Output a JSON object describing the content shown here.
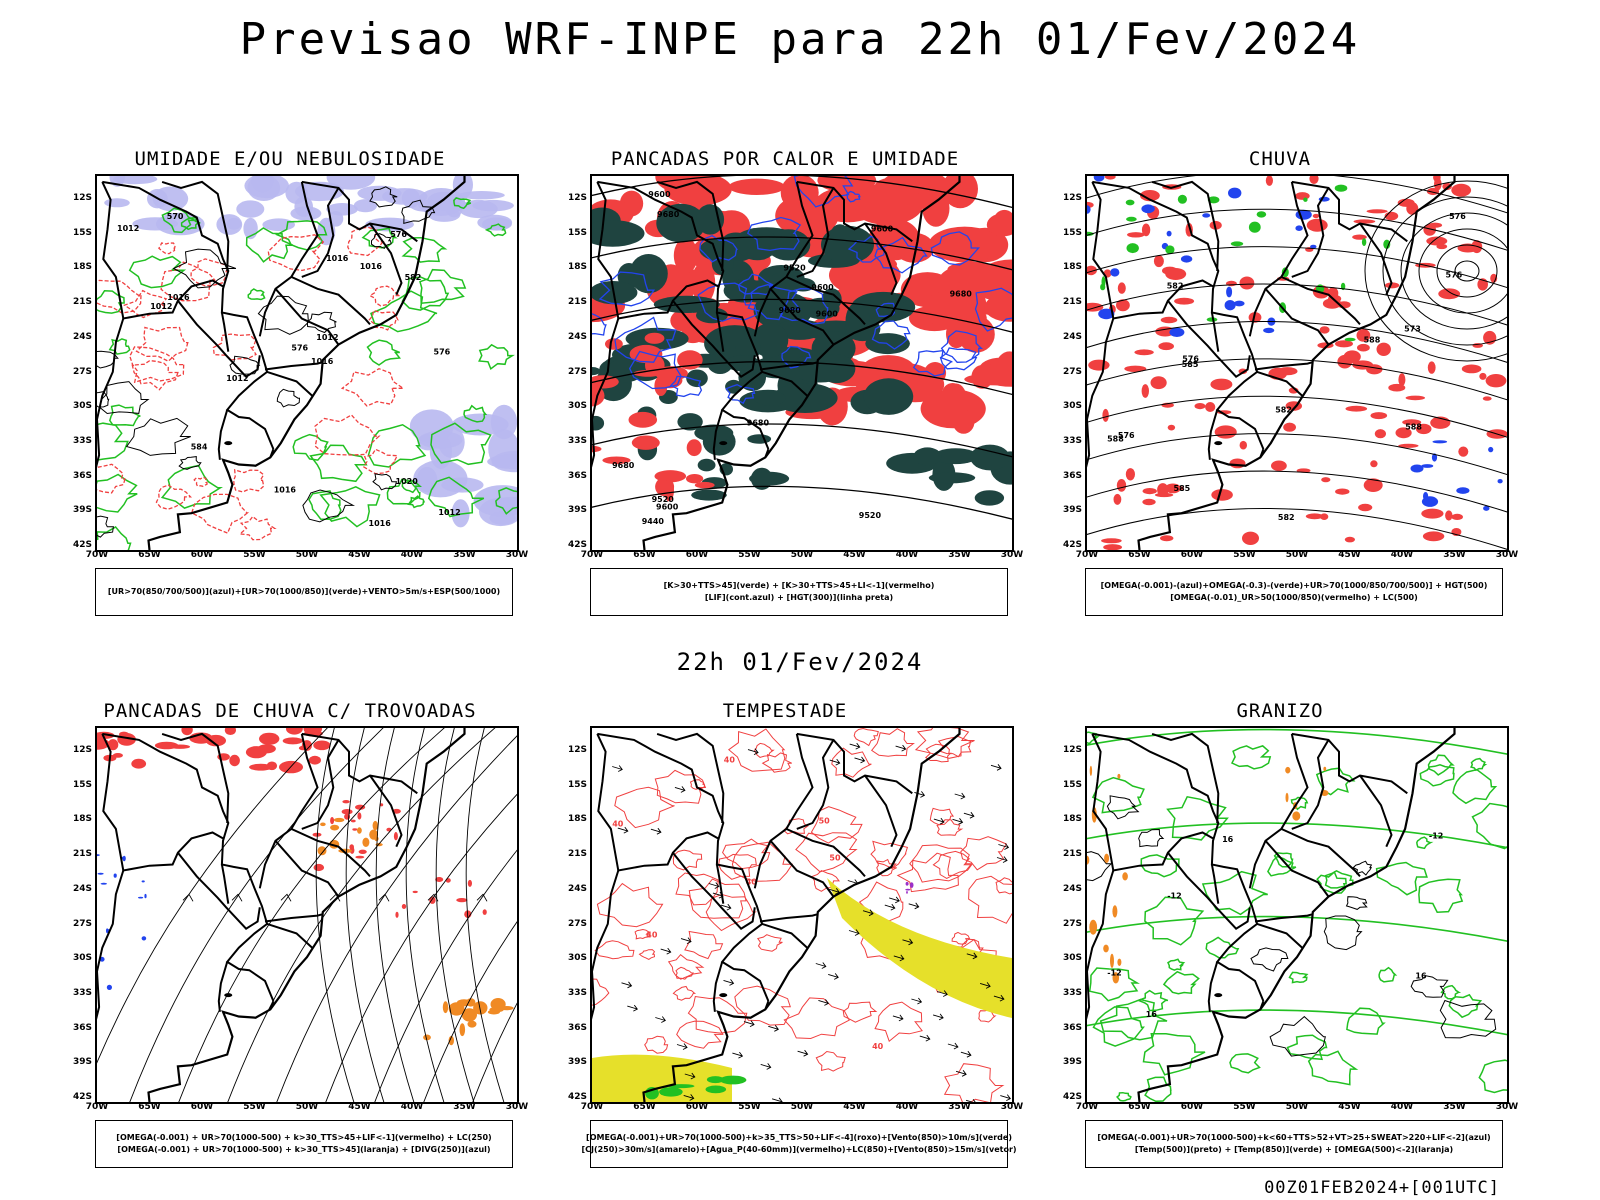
{
  "header": {
    "title": "Previsao WRF-INPE  para 22h 01/Fev/2024",
    "subtitle": "22h 01/Fev/2024",
    "footer": "00Z01FEB2024+[001UTC]"
  },
  "map": {
    "lat_ticks": [
      "12S",
      "15S",
      "18S",
      "21S",
      "24S",
      "27S",
      "30S",
      "33S",
      "36S",
      "39S",
      "42S"
    ],
    "lon_ticks": [
      "70W",
      "65W",
      "60W",
      "55W",
      "50W",
      "45W",
      "40W",
      "35W",
      "30W"
    ],
    "colors": {
      "coast": "#000000",
      "red": "#f04040",
      "green": "#22c022",
      "blue": "#2244ee",
      "lavender": "#b8b8f0",
      "darkteal": "#1f4440",
      "yellow": "#e6e02a",
      "orange": "#f08a24",
      "purple": "#9b30c8"
    }
  },
  "panels": [
    {
      "title": "UMIDADE E/OU NEBULOSIDADE",
      "legend": [
        "[UR>70(850/700/500)](azul)+[UR>70(1000/850)](verde)+VENTO>5m/s+ESP(500/1000)"
      ],
      "contour_labels": [
        "1012",
        "1012",
        "1016",
        "1020",
        "1012",
        "1016",
        "1012",
        "576",
        "576",
        "570",
        "1016",
        "1016",
        "1012",
        "576",
        "1016",
        "1016",
        "584",
        "582"
      ]
    },
    {
      "title": "PANCADAS POR CALOR E UMIDADE",
      "legend": [
        "[K>30+TTS>45](verde) + [K>30+TTS>45+LI<-1](vermelho)",
        "[LIF](cont.azul) + [HGT(300)](linha preta)"
      ],
      "contour_labels": [
        "9680",
        "9680",
        "9680",
        "9680",
        "9600",
        "9680",
        "9600",
        "9600",
        "9520",
        "9600",
        "9520",
        "9440",
        "9600",
        "9520"
      ]
    },
    {
      "title": "CHUVA",
      "legend": [
        "[OMEGA(-0.001)-(azul)+OMEGA(-0.3)-(verde)+UR>70(1000/850/700/500)] + HGT(500)",
        "[OMEGA(-0.01)_UR>50(1000/850)(vermelho) + LC(500)"
      ],
      "contour_labels": [
        "588",
        "585",
        "585",
        "588",
        "582",
        "588",
        "576",
        "576",
        "582",
        "573",
        "576",
        "576",
        "582"
      ]
    },
    {
      "title": "PANCADAS DE CHUVA C/ TROVOADAS",
      "legend": [
        "[OMEGA(-0.001) + UR>70(1000-500) + k>30_TTS>45+LIF<-1](vermelho) + LC(250)",
        "[OMEGA(-0.001) + UR>70(1000-500) + k>30_TTS>45](laranja) + [DIVG(250)](azul)"
      ]
    },
    {
      "title": "TEMPESTADE",
      "legend": [
        "[OMEGA(-0.001)+UR>70(1000-500)+k>35_TTS>50+LIF<-4](roxo)+[Vento(850)>10m/s](verde)",
        "[CJ(250)>30m/s](amarelo)+[Agua_P(40-60mm)](vermelho)+LC(850)+[Vento(850)>15m/s](vetor)"
      ],
      "contour_labels": [
        "40",
        "50",
        "40",
        "50",
        "40",
        "40",
        "40"
      ]
    },
    {
      "title": "GRANIZO",
      "legend": [
        "[OMEGA(-0.001)+UR>70(1000-500)+k<60+TTS>52+VT>25+SWEAT>220+LIF<-2](azul)",
        "[Temp(500)](preto) + [Temp(850)](verde) + [OMEGA(500)<-2](laranja)"
      ],
      "contour_labels": [
        "-12",
        "-12",
        "-12",
        "16",
        "16",
        "16"
      ]
    }
  ]
}
